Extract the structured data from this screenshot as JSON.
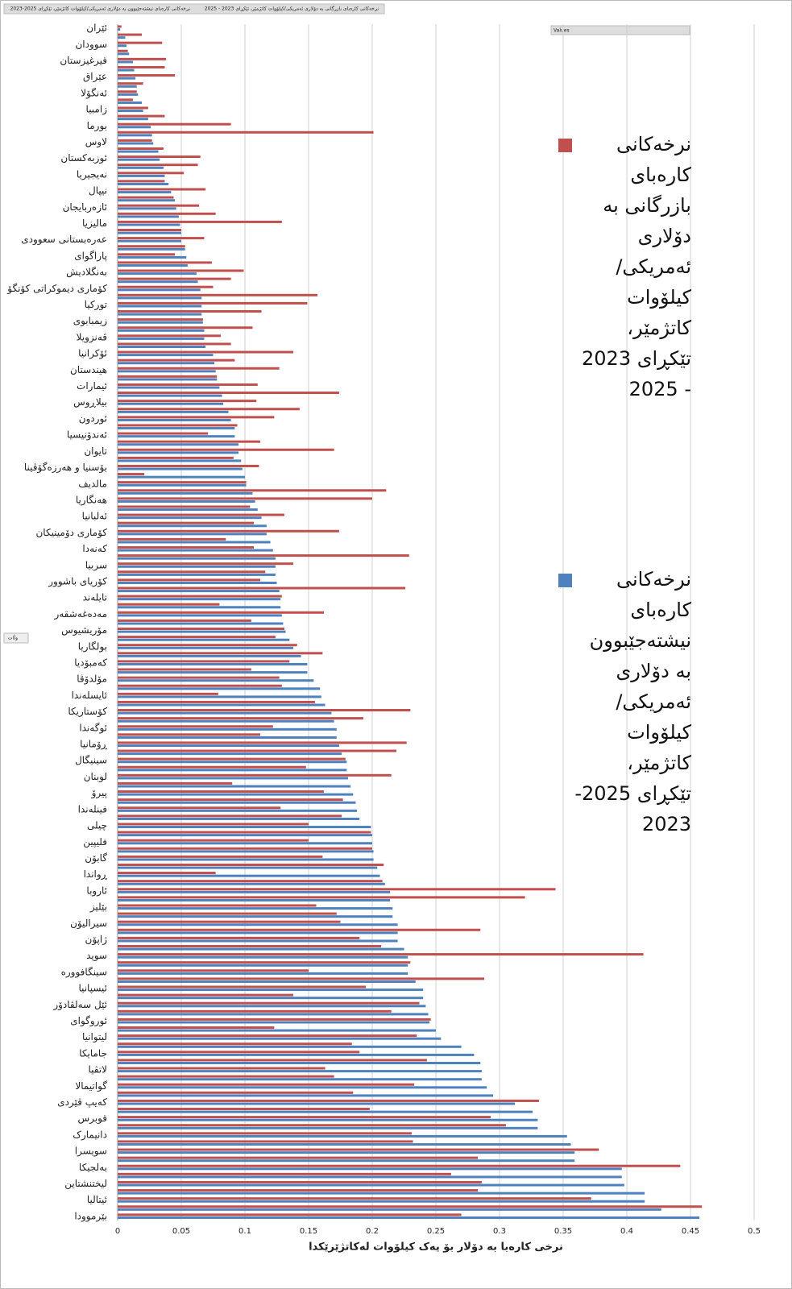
{
  "chart_data": {
    "type": "bar",
    "orientation": "horizontal",
    "x_label": "نرخی کارەبا بە دۆلار بۆ یەک کیلۆوات لەکاتژێرێکدا",
    "field_buttons": [
      "نرخەکانی کارەبای بازرگانی بە دۆلاری ئەمریکی/کیلۆوات کاتژمێر، تێکڕای 2023 - 2025",
      "نرخەکانی کارەبای نیشتەجێبوون بە دۆلاری ئەمریکی/کیلۆوات کاتژمێر، تێکڕای 2025-2023"
    ],
    "values_button": "Values",
    "axis_button": "وڵات",
    "xlim": [
      0,
      0.5
    ],
    "xticks": [
      0,
      0.05,
      0.1,
      0.15,
      0.2,
      0.25,
      0.3,
      0.35,
      0.4,
      0.45,
      0.5
    ],
    "grid": true,
    "categories": [
      "ئێران",
      null,
      "سوودان",
      null,
      "قیرغیزستان",
      null,
      "عێراق",
      null,
      "ئەنگۆلا",
      null,
      "زامبیا",
      null,
      "بورما",
      null,
      "لاوس",
      null,
      "ئوزبەکستان",
      null,
      "نەیجیریا",
      null,
      "نیپال",
      null,
      "ئازەربایجان",
      null,
      "مالیزیا",
      null,
      "عەرەبستانی سعوودی",
      null,
      "پاراگوای",
      null,
      "بەنگلادیش",
      null,
      "کۆماری دیموکراتی کۆنگۆ",
      null,
      "تورکیا",
      null,
      "زیمبابوی",
      null,
      "ڤەنزویلا",
      null,
      "ئۆکرانیا",
      null,
      "هیندستان",
      null,
      "ئیمارات",
      null,
      "بیلاڕوس",
      null,
      "ئوردون",
      null,
      "ئەندۆنیسیا",
      null,
      "تایوان",
      null,
      "بۆسنیا و هەرزەگۆڤینا",
      null,
      "مالدیف",
      null,
      "هەنگاریا",
      null,
      "ئەلبانیا",
      null,
      "کۆماری دۆمینیکان",
      null,
      "کەنەدا",
      null,
      "سربیا",
      null,
      "کۆریای باشوور",
      null,
      "تایلەند",
      null,
      "مەدەغەشقەر",
      null,
      "مۆریشیوس",
      null,
      "بولگاریا",
      null,
      "کەمبۆدیا",
      null,
      "مۆلدۆڤا",
      null,
      "ئایسلەندا",
      null,
      "کۆستاریکا",
      null,
      "ئوگەندا",
      null,
      "ڕۆمانیا",
      null,
      "سینیگال",
      null,
      "لوبنان",
      null,
      "پیرۆ",
      null,
      "فینلەندا",
      null,
      "چیلی",
      null,
      "فلیپین",
      null,
      "گابۆن",
      null,
      "ڕواندا",
      null,
      "ئاروبا",
      null,
      "بێلیز",
      null,
      "سیرالیۆن",
      null,
      "ژاپۆن",
      null,
      "سوید",
      null,
      "سینگافوورە",
      null,
      "ئیسپانیا",
      null,
      "ئێل سەلڤادۆر",
      null,
      "ئوروگوای",
      null,
      "لیتوانیا",
      null,
      "جامایکا",
      null,
      "لاتڤیا",
      null,
      "گواتیمالا",
      null,
      "کەیپ ڤێردی",
      null,
      "قوبرس",
      null,
      "دانیمارک",
      null,
      "سویسرا",
      null,
      "بەلجیکا",
      null,
      "لیختنشتاین",
      null,
      "ئیتالیا",
      null,
      "بێرموودا"
    ],
    "series": [
      {
        "name": "نرخەکانی کارەبای بازرگانی بە دۆلاری ئەمریکی/کیلۆوات کاتژمێر، تێکڕای 2023 - 2025",
        "color": "#c0504d",
        "values": [
          0.003,
          0.019,
          0.035,
          0.008,
          0.038,
          0.037,
          0.045,
          0.02,
          0.015,
          0.012,
          0.024,
          0.037,
          0.089,
          0.201,
          0.027,
          0.036,
          0.065,
          0.063,
          0.052,
          0.037,
          0.069,
          0.044,
          0.064,
          0.077,
          0.129,
          0.05,
          0.068,
          0.053,
          0.045,
          0.074,
          0.099,
          0.089,
          0.075,
          0.157,
          0.149,
          0.113,
          0.067,
          0.106,
          0.081,
          0.089,
          0.138,
          0.092,
          0.127,
          0.078,
          0.11,
          0.174,
          0.109,
          0.143,
          0.123,
          0.094,
          0.071,
          0.112,
          0.17,
          0.091,
          0.111,
          0.021,
          0.101,
          0.211,
          0.2,
          0.104,
          0.131,
          0.107,
          0.174,
          0.085,
          0.107,
          0.229,
          0.138,
          0.116,
          0.112,
          0.226,
          0.129,
          0.08,
          0.162,
          0.105,
          0.131,
          0.124,
          0.141,
          0.161,
          0.135,
          0.105,
          0.127,
          0.129,
          0.079,
          0.155,
          0.23,
          0.193,
          0.122,
          0.112,
          0.227,
          0.219,
          0.179,
          0.148,
          0.215,
          0.09,
          0.162,
          0.177,
          0.128,
          0.176,
          0.15,
          0.199,
          0.15,
          0.2,
          0.161,
          0.209,
          0.077,
          0.208,
          0.344,
          0.32,
          0.156,
          0.172,
          0.175,
          0.285,
          0.19,
          0.207,
          0.413,
          0.23,
          0.15,
          0.288,
          0.195,
          0.138,
          0.237,
          0.215,
          0.246,
          0.123,
          0.235,
          0.184,
          0.19,
          0.243,
          0.163,
          0.17,
          0.233,
          0.185,
          0.331,
          0.198,
          0.293,
          0.305,
          0.231,
          0.232,
          0.378,
          0.283,
          0.442,
          0.262,
          0.286,
          0.283,
          0.372,
          0.459,
          0.27
        ]
      },
      {
        "name": "نرخەکانی کارەبای نیشتەجێبوون بە دۆلاری ئەمریکی/کیلۆوات کاتژمێر، تێکڕای 2025-2023",
        "color": "#4f81bd",
        "values": [
          0.002,
          0.006,
          0.007,
          0.009,
          0.012,
          0.013,
          0.014,
          0.015,
          0.016,
          0.019,
          0.02,
          0.024,
          0.026,
          0.027,
          0.028,
          0.032,
          0.033,
          0.036,
          0.037,
          0.04,
          0.042,
          0.045,
          0.046,
          0.048,
          0.049,
          0.05,
          0.05,
          0.053,
          0.054,
          0.055,
          0.062,
          0.063,
          0.065,
          0.066,
          0.066,
          0.066,
          0.067,
          0.068,
          0.068,
          0.069,
          0.075,
          0.076,
          0.077,
          0.078,
          0.08,
          0.082,
          0.083,
          0.087,
          0.089,
          0.092,
          0.092,
          0.095,
          0.095,
          0.097,
          0.098,
          0.1,
          0.101,
          0.106,
          0.108,
          0.11,
          0.113,
          0.117,
          0.117,
          0.12,
          0.122,
          0.124,
          0.124,
          0.124,
          0.125,
          0.127,
          0.128,
          0.128,
          0.129,
          0.13,
          0.132,
          0.135,
          0.138,
          0.144,
          0.149,
          0.149,
          0.154,
          0.159,
          0.16,
          0.163,
          0.168,
          0.17,
          0.172,
          0.172,
          0.174,
          0.176,
          0.18,
          0.18,
          0.181,
          0.183,
          0.185,
          0.187,
          0.188,
          0.19,
          0.199,
          0.2,
          0.2,
          0.201,
          0.201,
          0.204,
          0.206,
          0.21,
          0.214,
          0.214,
          0.216,
          0.216,
          0.22,
          0.22,
          0.22,
          0.225,
          0.228,
          0.228,
          0.228,
          0.234,
          0.24,
          0.24,
          0.242,
          0.244,
          0.245,
          0.25,
          0.254,
          0.27,
          0.28,
          0.285,
          0.286,
          0.286,
          0.29,
          0.295,
          0.312,
          0.326,
          0.33,
          0.33,
          0.353,
          0.356,
          0.359,
          0.359,
          0.396,
          0.396,
          0.398,
          0.414,
          0.414,
          0.427,
          0.457
        ]
      }
    ]
  }
}
